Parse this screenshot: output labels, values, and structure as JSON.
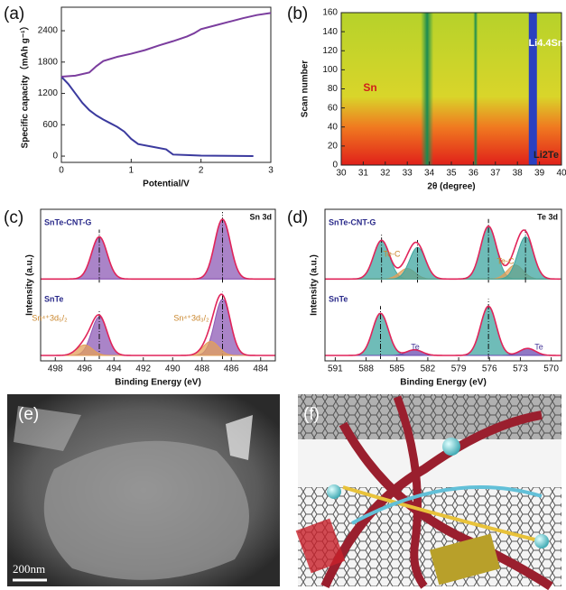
{
  "chart_data": [
    {
      "type": "line",
      "label": "(a)",
      "xlabel": "Potential/V",
      "ylabel": "Specific capacity（mAh g⁻¹）",
      "xlim": [
        0,
        3
      ],
      "xticks": [
        0,
        1,
        2,
        3
      ],
      "ylim": [
        -120,
        2850
      ],
      "yticks": [
        0,
        600,
        1200,
        1800,
        2400
      ],
      "series": [
        {
          "color": "#3b3a9e",
          "x": [
            0,
            0.1,
            0.2,
            0.3,
            0.4,
            0.5,
            0.6,
            0.7,
            0.8,
            0.9,
            1.0,
            1.1,
            1.3,
            1.5,
            1.6,
            1.8,
            2.0,
            2.4,
            2.75
          ],
          "values": [
            1520,
            1380,
            1200,
            1020,
            880,
            780,
            700,
            630,
            560,
            470,
            330,
            230,
            180,
            130,
            30,
            20,
            10,
            5,
            0
          ]
        },
        {
          "color": "#7b3d9e",
          "x": [
            0,
            0.2,
            0.4,
            0.5,
            0.6,
            0.8,
            1.0,
            1.2,
            1.4,
            1.6,
            1.8,
            1.9,
            2.0,
            2.2,
            2.4,
            2.6,
            2.8,
            3.0
          ],
          "values": [
            1520,
            1540,
            1600,
            1720,
            1820,
            1900,
            1960,
            2030,
            2120,
            2200,
            2290,
            2350,
            2430,
            2500,
            2570,
            2640,
            2700,
            2740
          ]
        }
      ]
    },
    {
      "type": "heatmap",
      "label": "(b)",
      "xlabel": "2θ (degree)",
      "ylabel": "Scan number",
      "xlim": [
        30,
        40
      ],
      "xticks": [
        30,
        31,
        32,
        33,
        34,
        35,
        36,
        37,
        38,
        39,
        40
      ],
      "ylim": [
        0,
        160
      ],
      "yticks": [
        0,
        20,
        40,
        60,
        80,
        100,
        120,
        140,
        160
      ],
      "annotations": [
        "Sn",
        "Li4.4Sn",
        "Li2Te"
      ]
    },
    {
      "type": "spectrum",
      "label": "(c)",
      "title": "Sn 3d",
      "xlabel": "Binding Energy (eV)",
      "ylabel": "Intensity (a.u.)",
      "xlim": [
        499,
        483
      ],
      "xticks": [
        498,
        496,
        494,
        492,
        490,
        488,
        486,
        484
      ],
      "traces": [
        {
          "name": "SnTe-CNT-G",
          "peaks": [
            {
              "center": 495.0,
              "height": 0.6,
              "color": "#8e5bb5"
            },
            {
              "center": 486.6,
              "height": 0.85,
              "color": "#8e5bb5"
            }
          ]
        },
        {
          "name": "SnTe",
          "peaks": [
            {
              "center": 495.0,
              "height": 0.55,
              "color": "#8e5bb5"
            },
            {
              "center": 496.0,
              "height": 0.15,
              "color": "#e3a05a"
            },
            {
              "center": 486.6,
              "height": 0.8,
              "color": "#8e5bb5"
            },
            {
              "center": 487.4,
              "height": 0.2,
              "color": "#e3a05a"
            }
          ]
        }
      ],
      "annotations": [
        "Sn⁴⁺3d₅/₂",
        "Sn⁴⁺3d₃/₂"
      ]
    },
    {
      "type": "spectrum",
      "label": "(d)",
      "title": "Te 3d",
      "xlabel": "Binding Energy (eV)",
      "ylabel": "Intensity (a.u.)",
      "xlim": [
        592,
        569
      ],
      "xticks": [
        591,
        588,
        585,
        582,
        579,
        576,
        573,
        570
      ],
      "traces": [
        {
          "name": "SnTe-CNT-G",
          "peaks": [
            {
              "center": 586.5,
              "height": 0.55,
              "color": "#3fa6a0"
            },
            {
              "center": 584.0,
              "height": 0.15,
              "color": "#e3a05a"
            },
            {
              "center": 583.0,
              "height": 0.45,
              "color": "#3fa6a0"
            },
            {
              "center": 576.1,
              "height": 0.75,
              "color": "#3fa6a0"
            },
            {
              "center": 573.5,
              "height": 0.2,
              "color": "#e3a05a"
            },
            {
              "center": 572.5,
              "height": 0.6,
              "color": "#3fa6a0"
            }
          ]
        },
        {
          "name": "SnTe",
          "peaks": [
            {
              "center": 586.6,
              "height": 0.6,
              "color": "#3fa6a0"
            },
            {
              "center": 583.3,
              "height": 0.08,
              "color": "#6a4bb0"
            },
            {
              "center": 576.1,
              "height": 0.7,
              "color": "#3fa6a0"
            },
            {
              "center": 572.3,
              "height": 0.1,
              "color": "#6a4bb0"
            }
          ]
        }
      ],
      "annotations": [
        "Te-C",
        "Te-C",
        "Te",
        "Te"
      ]
    }
  ],
  "images": [
    {
      "label": "(e)",
      "scale_bar": "200nm"
    },
    {
      "label": "(f)"
    }
  ]
}
